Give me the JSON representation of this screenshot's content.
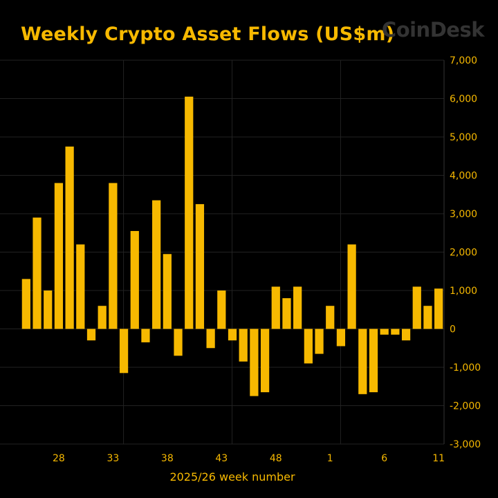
{
  "logo": "CoinDesk",
  "chart_data": {
    "type": "bar",
    "title": "Weekly Crypto Asset Flows (US$m)",
    "xlabel": "2025/26 week number",
    "ylabel": "",
    "ylim": [
      -3000,
      7000
    ],
    "yticks": [
      7000,
      6000,
      5000,
      4000,
      3000,
      2000,
      1000,
      0,
      -1000,
      -2000,
      -3000
    ],
    "ytick_labels": [
      "7,000",
      "6,000",
      "5,000",
      "4,000",
      "3,000",
      "2,000",
      "1,000",
      "0",
      "-1,000",
      "-2,000",
      "-3,000"
    ],
    "xtick_labels": [
      "28",
      "33",
      "38",
      "43",
      "48",
      "1",
      "6",
      "11"
    ],
    "xtick_indices": [
      3,
      8,
      13,
      18,
      23,
      28,
      33,
      38
    ],
    "gridline_indices": [
      9,
      19,
      29
    ],
    "bar_color": "#f7b900",
    "grid_color": "#222222",
    "categories": [
      "25",
      "26",
      "27",
      "28",
      "29",
      "30",
      "31",
      "32",
      "33",
      "34",
      "35",
      "36",
      "37",
      "38",
      "39",
      "40",
      "41",
      "42",
      "43",
      "44",
      "45",
      "46",
      "47",
      "48",
      "49",
      "50",
      "51",
      "52",
      "1",
      "2",
      "3",
      "4",
      "5",
      "6",
      "7",
      "8",
      "9",
      "10",
      "11"
    ],
    "values": [
      1300,
      2900,
      1000,
      3800,
      4750,
      2200,
      -300,
      600,
      3800,
      -1150,
      2550,
      -350,
      3350,
      1950,
      -700,
      6050,
      3250,
      -500,
      1000,
      -300,
      -850,
      -1750,
      -1650,
      1100,
      800,
      1100,
      -900,
      -650,
      600,
      -450,
      2200,
      -1700,
      -1650,
      -150,
      -150,
      -300,
      1100,
      600,
      1050
    ]
  }
}
